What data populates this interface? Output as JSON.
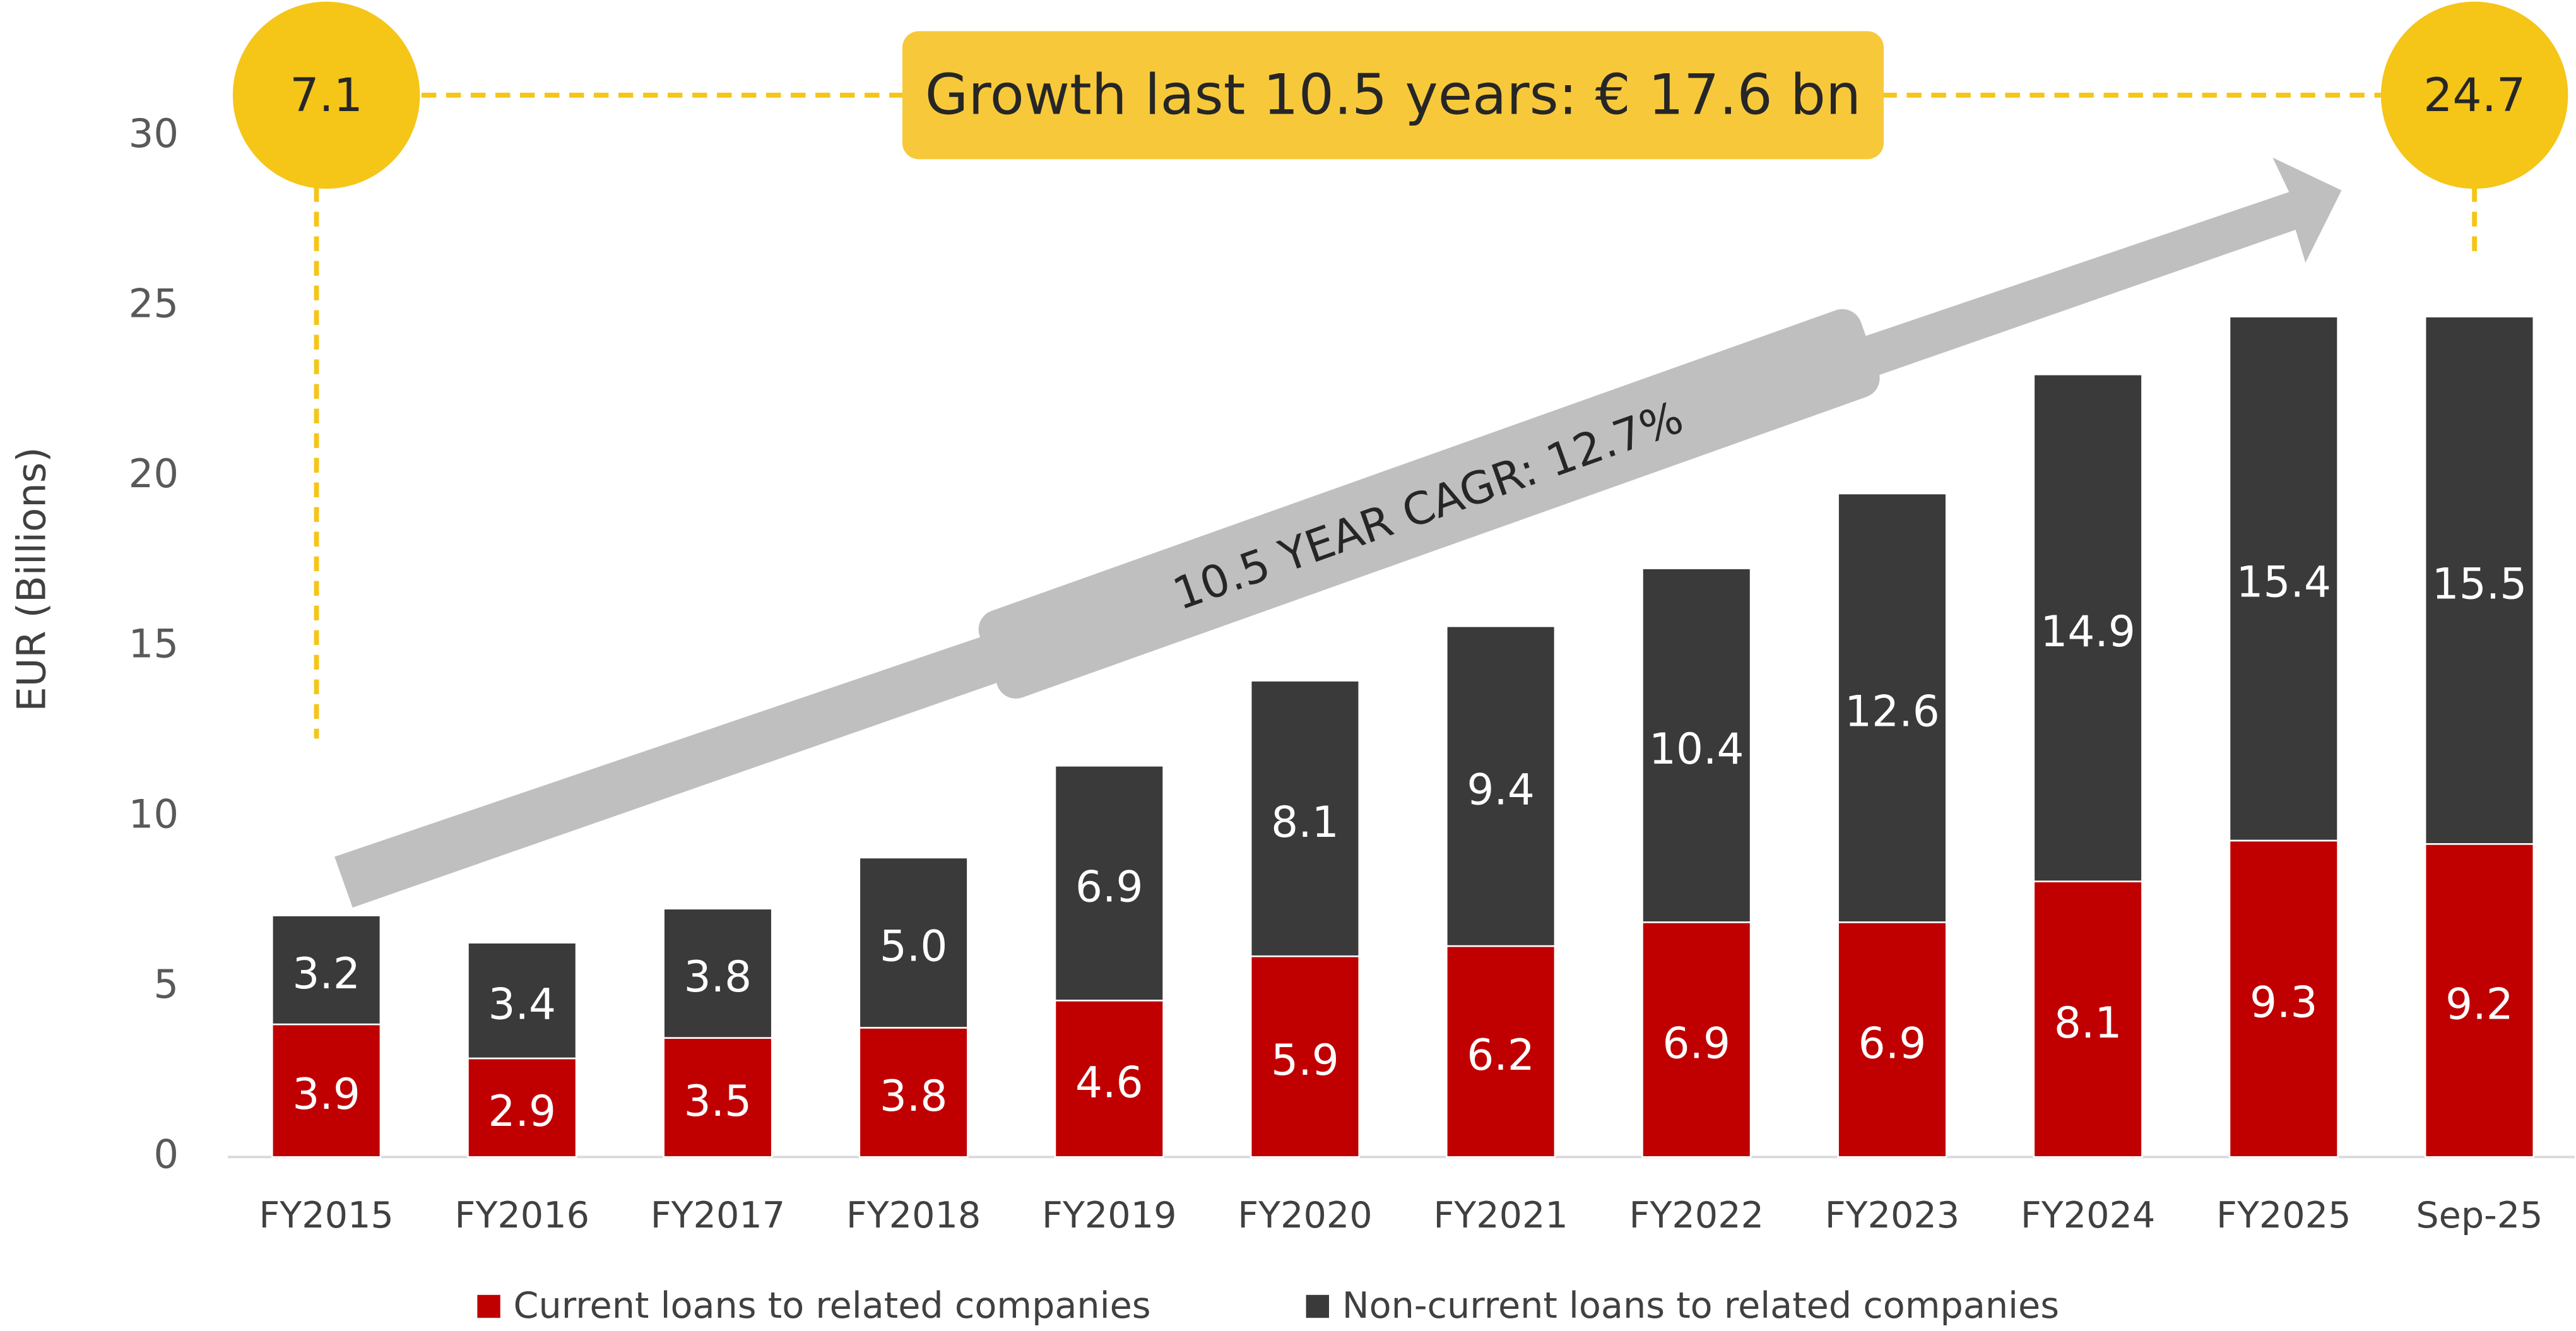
{
  "chart_data": {
    "type": "stacked_bar",
    "y_label": "EUR (Billions)",
    "categories": [
      "FY2015",
      "FY2016",
      "FY2017",
      "FY2018",
      "FY2019",
      "FY2020",
      "FY2021",
      "FY2022",
      "FY2023",
      "FY2024",
      "FY2025",
      "Sep-25"
    ],
    "series": [
      {
        "name": "Current loans to related companies",
        "color": "#c00000",
        "values": [
          3.9,
          2.9,
          3.5,
          3.8,
          4.6,
          5.9,
          6.2,
          6.9,
          6.9,
          8.1,
          9.3,
          9.2
        ],
        "value_labels": [
          "3.9",
          "2.9",
          "3.5",
          "3.8",
          "4.6",
          "5.9",
          "6.2",
          "6.9",
          "6.9",
          "8.1",
          "9.3",
          "9.2"
        ]
      },
      {
        "name": "Non-current loans to related companies",
        "color": "#3a3a3a",
        "values": [
          3.2,
          3.4,
          3.8,
          5.0,
          6.9,
          8.1,
          9.4,
          10.4,
          12.6,
          14.9,
          15.4,
          15.5
        ],
        "value_labels": [
          "3.2",
          "3.4",
          "3.8",
          "5.0",
          "6.9",
          "8.1",
          "9.4",
          "10.4",
          "12.6",
          "14.9",
          "15.4",
          "15.5"
        ]
      }
    ],
    "ylim": [
      0,
      30
    ],
    "yticks": [
      0,
      5,
      10,
      15,
      20,
      25,
      30
    ],
    "legend": "bottom",
    "annotations": {
      "start_total": "7.1",
      "end_total": "24.7",
      "growth": "Growth last 10.5 years: € 17.6 bn",
      "cagr": "10.5 YEAR CAGR: 12.7%"
    }
  }
}
